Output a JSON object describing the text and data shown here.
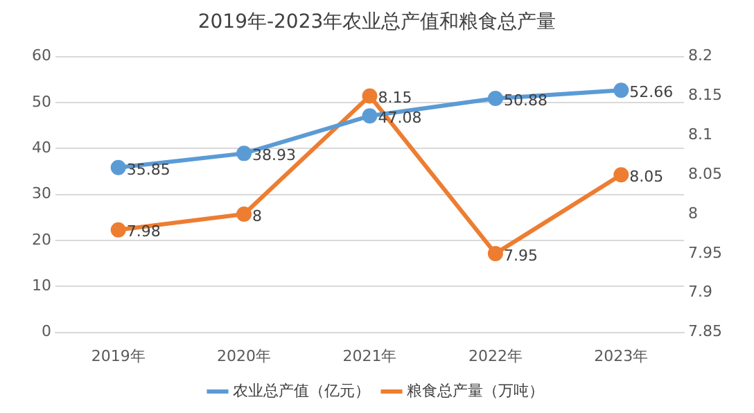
{
  "chart_data": {
    "type": "line",
    "title": "2019年-2023年农业总产值和粮食总产量",
    "categories": [
      "2019年",
      "2020年",
      "2021年",
      "2022年",
      "2023年"
    ],
    "series": [
      {
        "name": "农业总产值（亿元）",
        "color": "#5b9bd5",
        "values": [
          35.85,
          38.93,
          47.08,
          50.88,
          52.66
        ]
      },
      {
        "name": "粮食总产量（万吨）",
        "color": "#ed7d31",
        "values": [
          7.98,
          8,
          8.15,
          7.95,
          8.05
        ],
        "axis": "y2"
      }
    ],
    "ylim": [
      0,
      60
    ],
    "yticks": [
      0,
      10,
      20,
      30,
      40,
      50,
      60
    ],
    "y2lim": [
      7.85,
      8.2
    ],
    "y2ticks": [
      7.85,
      7.9,
      7.95,
      8,
      8.05,
      8.1,
      8.15,
      8.2
    ],
    "grid": "y",
    "legend": "bottom",
    "marker": "circle",
    "line_style": "solid",
    "data_labels": true
  }
}
